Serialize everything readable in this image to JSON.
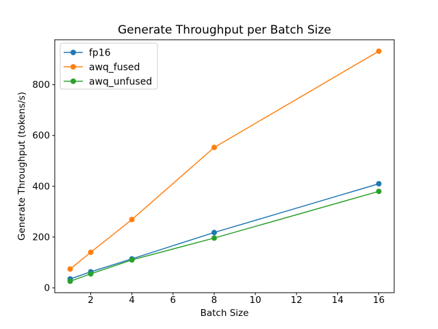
{
  "chart_data": {
    "type": "line",
    "title": "Generate Throughput per Batch Size",
    "xlabel": "Batch Size",
    "ylabel": "Generate Throughput (tokens/s)",
    "x": [
      1,
      2,
      4,
      8,
      16
    ],
    "series": [
      {
        "name": "fp16",
        "color": "#1f77b4",
        "values": [
          35,
          63,
          114,
          218,
          410
        ]
      },
      {
        "name": "awq_fused",
        "color": "#ff7f0e",
        "values": [
          74,
          140,
          269,
          553,
          932
        ]
      },
      {
        "name": "awq_unfused",
        "color": "#2ca02c",
        "values": [
          26,
          55,
          110,
          196,
          380
        ]
      }
    ],
    "xlim": [
      0.25,
      16.75
    ],
    "ylim": [
      -19,
      977
    ],
    "xticks": [
      2,
      4,
      6,
      8,
      10,
      12,
      14,
      16
    ],
    "yticks": [
      0,
      200,
      400,
      600,
      800
    ],
    "grid": false,
    "marker": "o",
    "legend": {
      "position": "upper left",
      "entries": [
        "fp16",
        "awq_fused",
        "awq_unfused"
      ]
    },
    "colors": {
      "spine": "#000000",
      "background": "#ffffff",
      "legend_border": "#cccccc"
    }
  }
}
